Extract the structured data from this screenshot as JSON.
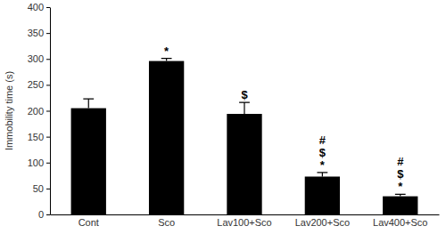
{
  "chart_data": {
    "type": "bar",
    "y_label": "Immobility time (s)",
    "categories": [
      "Cont",
      "Sco",
      "Lav100+Sco",
      "Lav200+Sco",
      "Lav400+Sco"
    ],
    "values": [
      205,
      296,
      194,
      73,
      35
    ],
    "errors": [
      18,
      5,
      22,
      8,
      4
    ],
    "annotations": [
      null,
      [
        "*"
      ],
      [
        "$"
      ],
      [
        "#",
        "$",
        "*"
      ],
      [
        "#",
        "$",
        "*"
      ]
    ],
    "color": "#000000",
    "ylim": [
      0,
      400
    ],
    "yticks": [
      0,
      50,
      100,
      150,
      200,
      250,
      300,
      350,
      400
    ],
    "grid": false
  }
}
